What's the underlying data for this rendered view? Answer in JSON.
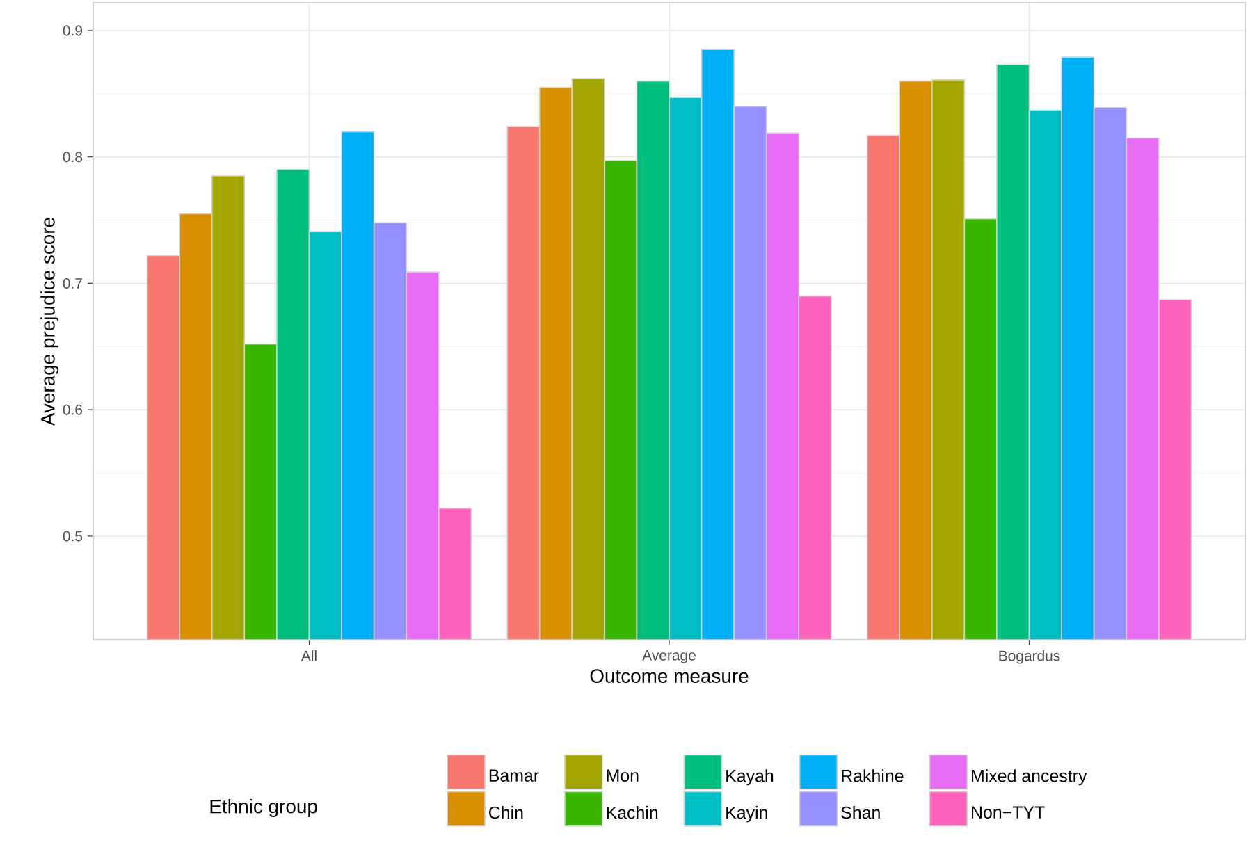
{
  "chart_data": {
    "type": "bar",
    "xlabel": "Outcome measure",
    "ylabel": "Average prejudice score",
    "legend_title": "Ethnic group",
    "legend": "bottom",
    "grid": true,
    "categories": [
      "All",
      "Average",
      "Bogardus"
    ],
    "ylim": [
      0.418,
      0.922
    ],
    "yticks": [
      0.5,
      0.6,
      0.7,
      0.8,
      0.9
    ],
    "series": [
      {
        "name": "Bamar",
        "color": "#f8766d",
        "values": [
          0.722,
          0.824,
          0.817
        ]
      },
      {
        "name": "Chin",
        "color": "#d89000",
        "values": [
          0.755,
          0.855,
          0.86
        ]
      },
      {
        "name": "Mon",
        "color": "#a3a500",
        "values": [
          0.785,
          0.862,
          0.861
        ]
      },
      {
        "name": "Kachin",
        "color": "#39b600",
        "values": [
          0.652,
          0.797,
          0.751
        ]
      },
      {
        "name": "Kayah",
        "color": "#00bf7d",
        "values": [
          0.79,
          0.86,
          0.873
        ]
      },
      {
        "name": "Kayin",
        "color": "#00bfc4",
        "values": [
          0.741,
          0.847,
          0.837
        ]
      },
      {
        "name": "Rakhine",
        "color": "#00b0f6",
        "values": [
          0.82,
          0.885,
          0.879
        ]
      },
      {
        "name": "Shan",
        "color": "#9590ff",
        "values": [
          0.748,
          0.84,
          0.839
        ]
      },
      {
        "name": "Mixed ancestry",
        "color": "#e76bf3",
        "values": [
          0.709,
          0.819,
          0.815
        ]
      },
      {
        "name": "Non−TYT",
        "color": "#ff62bc",
        "values": [
          0.522,
          0.69,
          0.687
        ]
      }
    ]
  }
}
